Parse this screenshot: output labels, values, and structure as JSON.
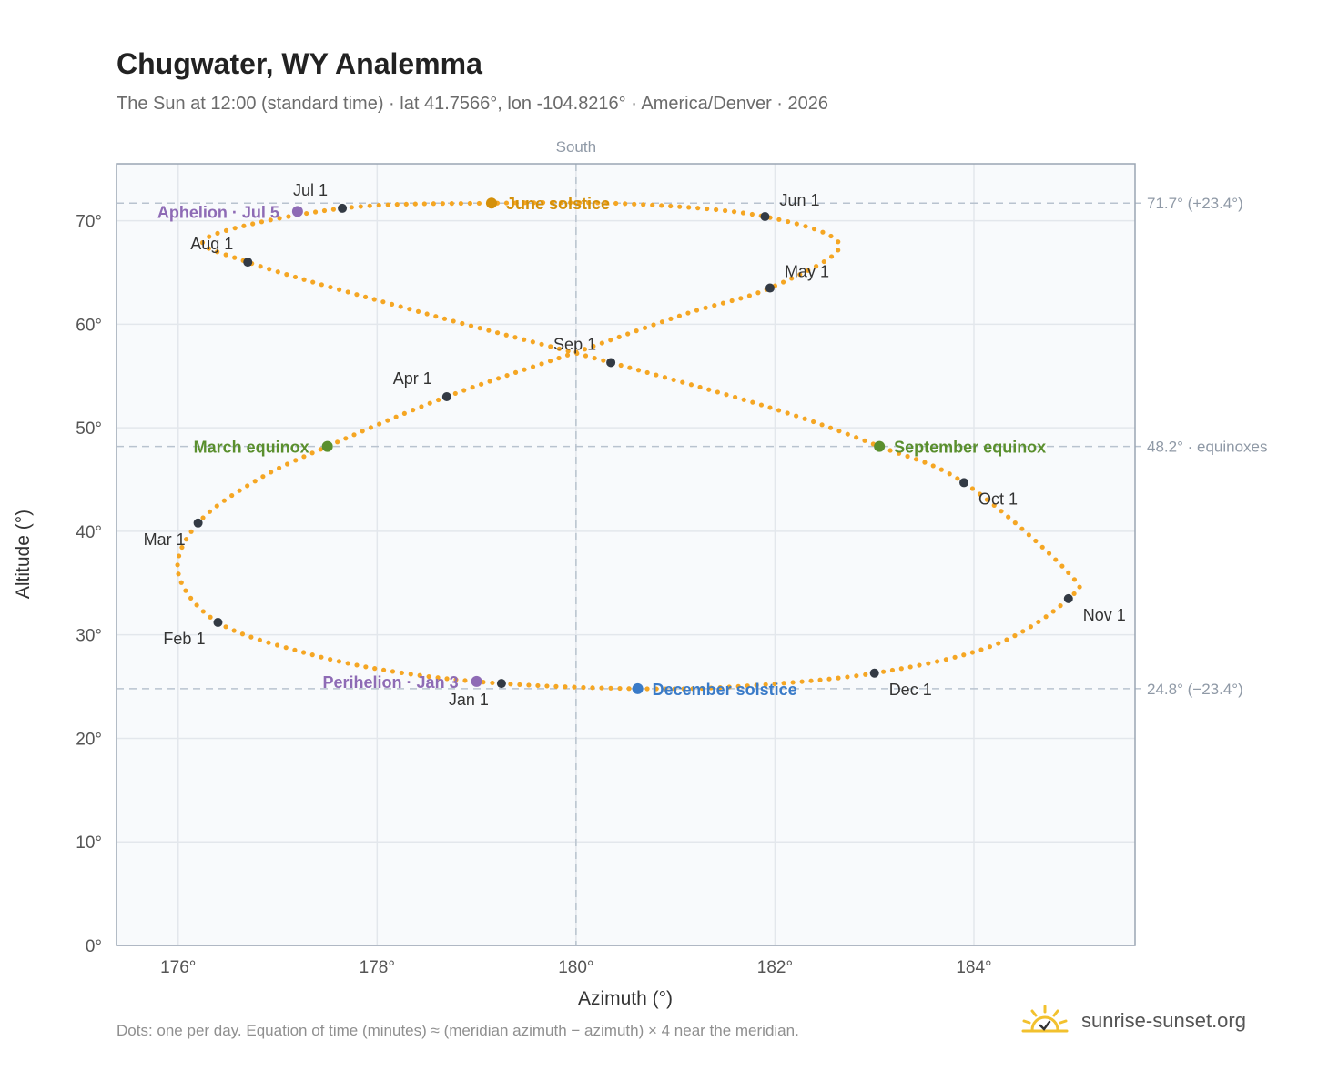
{
  "header": {
    "title": "Chugwater, WY Analemma",
    "subtitle": "The Sun at 12:00 (standard time) · lat 41.7566°, lon -104.8216° · America/Denver · 2026"
  },
  "footer": {
    "note": "Dots: one per day. Equation of time (minutes) ≈ (meridian azimuth − azimuth) × 4 near the meridian.",
    "brand": "sunrise-sunset.org",
    "brand_icon": "sun-icon"
  },
  "colors": {
    "curve": "#f5a623",
    "month_marker": "#333a44",
    "equinox": "#5a8f2e",
    "june_solstice": "#d4900a",
    "december_solstice": "#3a7bc8",
    "apsis": "#8e6bb5",
    "plot_bg": "#f8fafc",
    "grid": "#e3e7ec",
    "frame": "#9aa5b3",
    "ref_line": "#b9c3cf"
  },
  "chart_data": {
    "type": "scatter",
    "xlabel": "Azimuth (°)",
    "ylabel": "Altitude (°)",
    "xlim": [
      175.38,
      185.62
    ],
    "ylim": [
      0,
      75.5
    ],
    "x_ticks": [
      176,
      178,
      180,
      182,
      184
    ],
    "x_tick_labels": [
      "176°",
      "178°",
      "180°",
      "182°",
      "184°"
    ],
    "y_ticks": [
      0,
      10,
      20,
      30,
      40,
      50,
      60,
      70
    ],
    "y_tick_labels": [
      "0°",
      "10°",
      "20°",
      "30°",
      "40°",
      "50°",
      "60°",
      "70°"
    ],
    "grid": true,
    "meridian": {
      "x": 180,
      "label": "South"
    },
    "reference_lines": [
      {
        "y": 71.7,
        "label": "71.7° (+23.4°)"
      },
      {
        "y": 48.2,
        "label": "48.2° · equinoxes"
      },
      {
        "y": 24.8,
        "label": "24.8° (−23.4°)"
      }
    ],
    "series": [
      {
        "kind": "daily",
        "points": [
          [
            179.25,
            25.3
          ],
          [
            178.2,
            26.4
          ],
          [
            177.3,
            28.2
          ],
          [
            176.4,
            31.2
          ],
          [
            176.0,
            36.0
          ],
          [
            176.2,
            40.8
          ],
          [
            176.8,
            45.0
          ],
          [
            177.5,
            48.2
          ],
          [
            178.7,
            53.0
          ],
          [
            180.0,
            57.3
          ],
          [
            181.1,
            61.0
          ],
          [
            181.95,
            63.5
          ],
          [
            182.65,
            67.6
          ],
          [
            181.9,
            70.4
          ],
          [
            180.6,
            71.6
          ],
          [
            179.2,
            71.7
          ],
          [
            177.65,
            71.2
          ],
          [
            176.3,
            68.4
          ],
          [
            176.7,
            66.0
          ],
          [
            178.5,
            61.0
          ],
          [
            180.35,
            56.3
          ],
          [
            182.0,
            51.8
          ],
          [
            183.05,
            48.2
          ],
          [
            183.9,
            44.7
          ],
          [
            184.95,
            36.0
          ],
          [
            184.95,
            33.5
          ],
          [
            184.2,
            29.0
          ],
          [
            183.0,
            26.3
          ],
          [
            181.6,
            25.0
          ],
          [
            180.6,
            24.8
          ],
          [
            179.25,
            25.3
          ]
        ]
      }
    ],
    "month_markers": [
      {
        "label": "Jan 1",
        "x": 179.25,
        "y": 25.3,
        "pos": "below-left"
      },
      {
        "label": "Feb 1",
        "x": 176.4,
        "y": 31.2,
        "pos": "below-left"
      },
      {
        "label": "Mar 1",
        "x": 176.2,
        "y": 40.8,
        "pos": "below-left"
      },
      {
        "label": "Apr 1",
        "x": 178.7,
        "y": 53.0,
        "pos": "above-left"
      },
      {
        "label": "May 1",
        "x": 181.95,
        "y": 63.5,
        "pos": "above-right"
      },
      {
        "label": "Jun 1",
        "x": 181.9,
        "y": 70.4,
        "pos": "above-right"
      },
      {
        "label": "Jul 1",
        "x": 177.65,
        "y": 71.2,
        "pos": "above-left"
      },
      {
        "label": "Aug 1",
        "x": 176.7,
        "y": 66.0,
        "pos": "above-left"
      },
      {
        "label": "Sep 1",
        "x": 180.35,
        "y": 56.3,
        "pos": "above-left"
      },
      {
        "label": "Oct 1",
        "x": 183.9,
        "y": 44.7,
        "pos": "below-right"
      },
      {
        "label": "Nov 1",
        "x": 184.95,
        "y": 33.5,
        "pos": "below-right"
      },
      {
        "label": "Dec 1",
        "x": 183.0,
        "y": 26.3,
        "pos": "below-right"
      }
    ],
    "events": [
      {
        "label": "June solstice",
        "x": 179.15,
        "y": 71.7,
        "color_key": "june_solstice",
        "side": "right"
      },
      {
        "label": "December solstice",
        "x": 180.62,
        "y": 24.8,
        "color_key": "december_solstice",
        "side": "right"
      },
      {
        "label": "March equinox",
        "x": 177.5,
        "y": 48.2,
        "color_key": "equinox",
        "side": "left"
      },
      {
        "label": "September equinox",
        "x": 183.05,
        "y": 48.2,
        "color_key": "equinox",
        "side": "right"
      },
      {
        "label": "Aphelion · Jul 5",
        "x": 177.2,
        "y": 70.9,
        "color_key": "apsis",
        "side": "left"
      },
      {
        "label": "Perihelion · Jan 3",
        "x": 179.0,
        "y": 25.5,
        "color_key": "apsis",
        "side": "left"
      }
    ]
  }
}
